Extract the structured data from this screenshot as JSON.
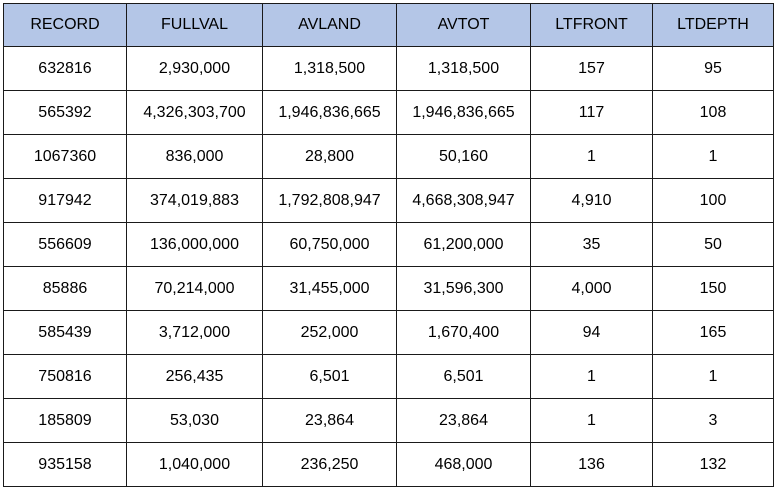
{
  "table": {
    "headers": [
      "RECORD",
      "FULLVAL",
      "AVLAND",
      "AVTOT",
      "LTFRONT",
      "LTDEPTH"
    ],
    "rows": [
      [
        "632816",
        "2,930,000",
        "1,318,500",
        "1,318,500",
        "157",
        "95"
      ],
      [
        "565392",
        "4,326,303,700",
        "1,946,836,665",
        "1,946,836,665",
        "117",
        "108"
      ],
      [
        "1067360",
        "836,000",
        "28,800",
        "50,160",
        "1",
        "1"
      ],
      [
        "917942",
        "374,019,883",
        "1,792,808,947",
        "4,668,308,947",
        "4,910",
        "100"
      ],
      [
        "556609",
        "136,000,000",
        "60,750,000",
        "61,200,000",
        "35",
        "50"
      ],
      [
        "85886",
        "70,214,000",
        "31,455,000",
        "31,596,300",
        "4,000",
        "150"
      ],
      [
        "585439",
        "3,712,000",
        "252,000",
        "1,670,400",
        "94",
        "165"
      ],
      [
        "750816",
        "256,435",
        "6,501",
        "6,501",
        "1",
        "1"
      ],
      [
        "185809",
        "53,030",
        "23,864",
        "23,864",
        "1",
        "3"
      ],
      [
        "935158",
        "1,040,000",
        "236,250",
        "468,000",
        "136",
        "132"
      ]
    ]
  },
  "colors": {
    "header_background": "#b4c6e7",
    "border": "#1a1a1a"
  }
}
